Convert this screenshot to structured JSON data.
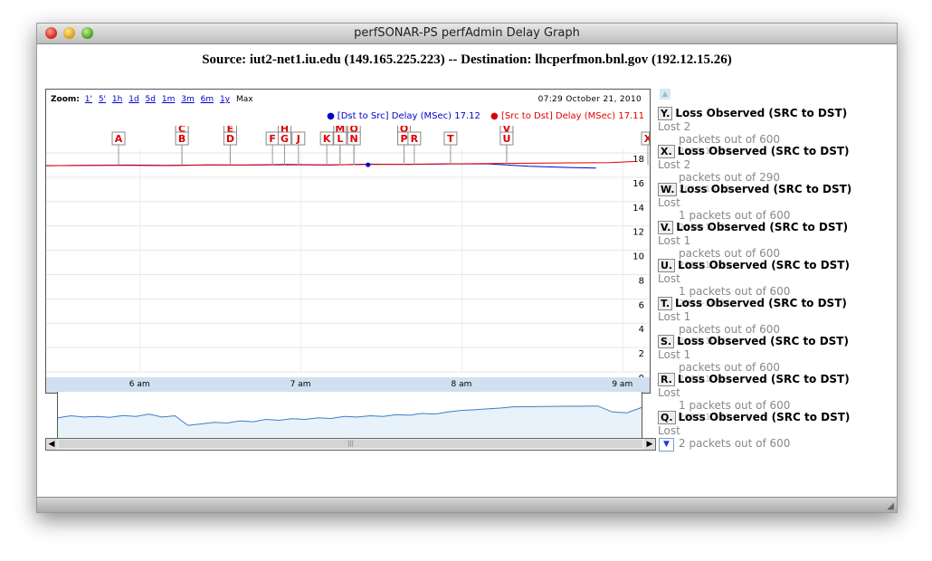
{
  "window": {
    "title": "perfSONAR-PS perfAdmin Delay Graph"
  },
  "heading": "Source: iut2-net1.iu.edu (149.165.225.223) -- Destination: lhcperfmon.bnl.gov (192.12.15.26)",
  "chart": {
    "zoom_label": "Zoom:",
    "zoom_options": [
      "1'",
      "5'",
      "1h",
      "1d",
      "5d",
      "1m",
      "3m",
      "6m",
      "1y",
      "Max"
    ],
    "timestamp": "07:29  October 21, 2010",
    "legend_blue": "[Dst to Src] Delay (MSec) 17.12",
    "legend_red": "[Src to Dst] Delay (MSec) 17.11"
  },
  "chart_data": {
    "type": "line",
    "ylim": [
      0,
      18
    ],
    "yticks": [
      0,
      2,
      4,
      6,
      8,
      10,
      12,
      14,
      16,
      18
    ],
    "xticks": [
      "6 am",
      "7 am",
      "8 am",
      "9 am"
    ],
    "series": [
      {
        "name": "[Dst to Src] Delay (MSec)",
        "color": "#0000cc",
        "x": [
          "5:25",
          "5:40",
          "5:55",
          "6:10",
          "6:25",
          "6:40",
          "6:55",
          "7:10",
          "7:25",
          "7:40",
          "7:55",
          "8:10",
          "8:25",
          "8:40",
          "8:50"
        ],
        "y": [
          16.95,
          16.98,
          17.0,
          16.97,
          17.02,
          17.0,
          17.05,
          17.0,
          17.08,
          17.05,
          17.1,
          17.1,
          16.9,
          16.8,
          16.75
        ]
      },
      {
        "name": "[Src to Dst] Delay (MSec)",
        "color": "#e00000",
        "x": [
          "5:25",
          "5:40",
          "5:55",
          "6:10",
          "6:25",
          "6:40",
          "6:55",
          "7:10",
          "7:25",
          "7:40",
          "7:55",
          "8:10",
          "8:25",
          "8:40",
          "8:55",
          "9:05"
        ],
        "y": [
          16.95,
          16.97,
          16.98,
          16.96,
          17.0,
          17.0,
          17.02,
          17.02,
          17.05,
          17.07,
          17.1,
          17.12,
          17.15,
          17.18,
          17.2,
          17.3
        ]
      }
    ]
  },
  "flags": [
    {
      "letter": "A",
      "x": 0.12,
      "row": 1
    },
    {
      "letter": "C",
      "x": 0.225,
      "row": 0
    },
    {
      "letter": "B",
      "x": 0.225,
      "row": 1
    },
    {
      "letter": "E",
      "x": 0.305,
      "row": 0
    },
    {
      "letter": "D",
      "x": 0.305,
      "row": 1
    },
    {
      "letter": "F",
      "x": 0.375,
      "row": 1
    },
    {
      "letter": "H",
      "x": 0.395,
      "row": 0
    },
    {
      "letter": "G",
      "x": 0.395,
      "row": 1
    },
    {
      "letter": "J",
      "x": 0.418,
      "row": 1
    },
    {
      "letter": "K",
      "x": 0.465,
      "row": 1
    },
    {
      "letter": "M",
      "x": 0.487,
      "row": 0
    },
    {
      "letter": "L",
      "x": 0.487,
      "row": 1
    },
    {
      "letter": "O",
      "x": 0.51,
      "row": 0
    },
    {
      "letter": "N",
      "x": 0.51,
      "row": 1
    },
    {
      "letter": "Q",
      "x": 0.593,
      "row": 0
    },
    {
      "letter": "P",
      "x": 0.593,
      "row": 1
    },
    {
      "letter": "R",
      "x": 0.61,
      "row": 1
    },
    {
      "letter": "T",
      "x": 0.67,
      "row": 1
    },
    {
      "letter": "V",
      "x": 0.763,
      "row": 0
    },
    {
      "letter": "U",
      "x": 0.763,
      "row": 1
    },
    {
      "letter": "X",
      "x": 0.997,
      "row": 1
    },
    {
      "letter": "Y",
      "x": 1.01,
      "row": 1
    }
  ],
  "annotations": [
    {
      "key": "Y.",
      "title": "Loss Observed (SRC to DST)",
      "rest": "Lost 2",
      "line2": "packets out of 600",
      "date": "2010-10-21"
    },
    {
      "key": "X.",
      "title": "Loss Observed (SRC to DST)",
      "rest": "Lost 2",
      "line2": "packets out of 290",
      "date": "2010-10-21"
    },
    {
      "key": "W.",
      "title": "Loss Observed (SRC to DST)",
      "rest": "Lost",
      "line2": "1 packets out of 600",
      "date": "2010-10-21"
    },
    {
      "key": "V.",
      "title": "Loss Observed (SRC to DST)",
      "rest": "Lost 1",
      "line2": "packets out of 600",
      "date": "2010-10-21"
    },
    {
      "key": "U.",
      "title": "Loss Observed (SRC to DST)",
      "rest": "Lost",
      "line2": "1 packets out of 600",
      "date": "2010-10-21"
    },
    {
      "key": "T.",
      "title": "Loss Observed (SRC to DST)",
      "rest": "Lost 1",
      "line2": "packets out of 600",
      "date": "2010-10-21"
    },
    {
      "key": "S.",
      "title": "Loss Observed (SRC to DST)",
      "rest": "Lost 1",
      "line2": "packets out of 600",
      "date": "2010-10-21"
    },
    {
      "key": "R.",
      "title": "Loss Observed (SRC to DST)",
      "rest": "Lost",
      "line2": "1 packets out of 600",
      "date": "2010-10-21"
    },
    {
      "key": "Q.",
      "title": "Loss Observed (SRC to DST)",
      "rest": "Lost",
      "line2": "2 packets out of 600",
      "date": ""
    }
  ],
  "navigator": {
    "note": "",
    "y": [
      0.55,
      0.62,
      0.58,
      0.6,
      0.57,
      0.63,
      0.6,
      0.68,
      0.58,
      0.62,
      0.3,
      0.35,
      0.4,
      0.38,
      0.45,
      0.42,
      0.5,
      0.47,
      0.52,
      0.5,
      0.55,
      0.53,
      0.6,
      0.58,
      0.62,
      0.6,
      0.66,
      0.64,
      0.7,
      0.68,
      0.75,
      0.8,
      0.82,
      0.85,
      0.88,
      0.92,
      0.95,
      0.75,
      0.72,
      0.9
    ]
  }
}
